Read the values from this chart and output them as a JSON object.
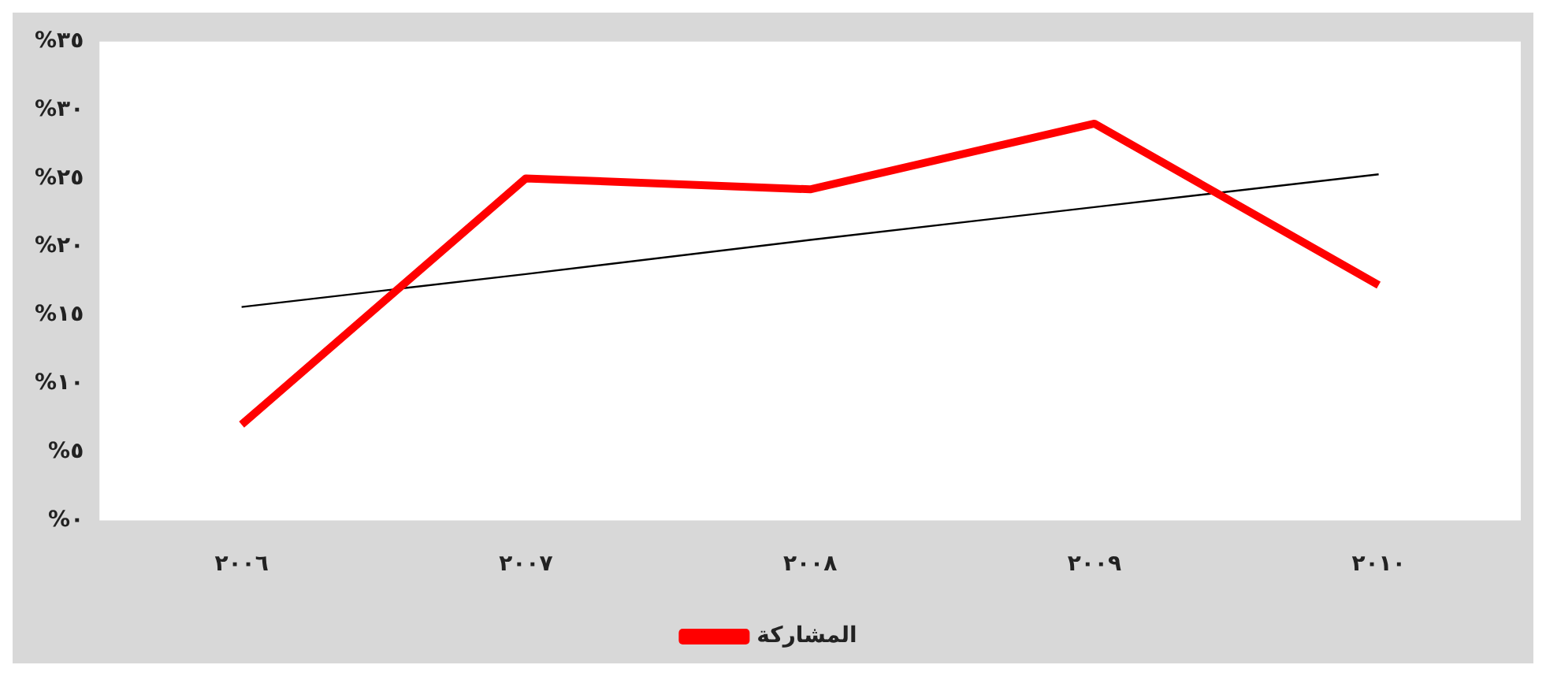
{
  "chart_data": {
    "type": "line",
    "categories": [
      "٢٠٠٦",
      "٢٠٠٧",
      "٢٠٠٨",
      "٢٠٠٩",
      "٢٠١٠"
    ],
    "series": [
      {
        "name": "المشاركة",
        "color": "#ff0000",
        "values": [
          7,
          25,
          24.2,
          29,
          17.2
        ]
      },
      {
        "type": "line",
        "color": "#000000",
        "values": [
          15.6,
          18,
          20.5,
          22.9,
          25.3
        ]
      }
    ],
    "ylim": [
      0,
      35
    ],
    "yticks": [
      {
        "value": 0,
        "label": "%٠"
      },
      {
        "value": 5,
        "label": "%٥"
      },
      {
        "value": 10,
        "label": "%١٠"
      },
      {
        "value": 15,
        "label": "%١٥"
      },
      {
        "value": 20,
        "label": "%٢٠"
      },
      {
        "value": 25,
        "label": "%٢٥"
      },
      {
        "value": 30,
        "label": "%٣٠"
      },
      {
        "value": 35,
        "label": "%٣٥"
      }
    ],
    "grid": false,
    "legend": "bottom",
    "marker": "none",
    "line_style": "solid"
  }
}
